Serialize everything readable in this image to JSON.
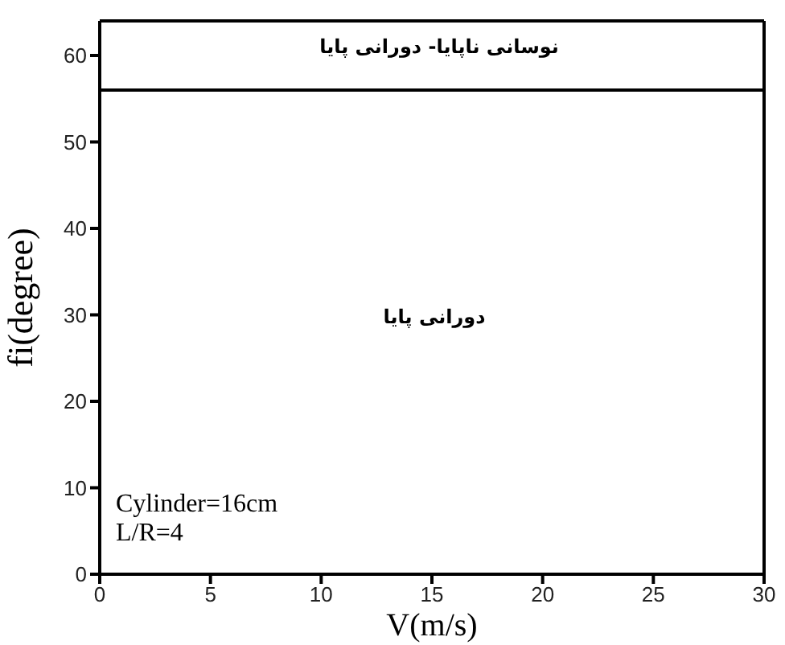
{
  "chart_data": {
    "type": "line",
    "xlabel": "V(m/s)",
    "ylabel": "fi(degree)",
    "x": [
      0,
      30
    ],
    "series": [
      {
        "color": "#000000",
        "values": [
          56,
          56
        ]
      }
    ],
    "xlim": [
      0,
      30
    ],
    "xticks": [
      0,
      5,
      10,
      15,
      20,
      25,
      30
    ],
    "ylim": [
      0,
      64
    ],
    "yticks": [
      0,
      10,
      20,
      30,
      40,
      50,
      60
    ],
    "marker": "none",
    "line_style": "solid",
    "annotations": [
      "نوسانی ناپایا- دورانی پایا",
      "دورانی پایا",
      "Cylinder=16cm",
      "L/R=4"
    ]
  }
}
